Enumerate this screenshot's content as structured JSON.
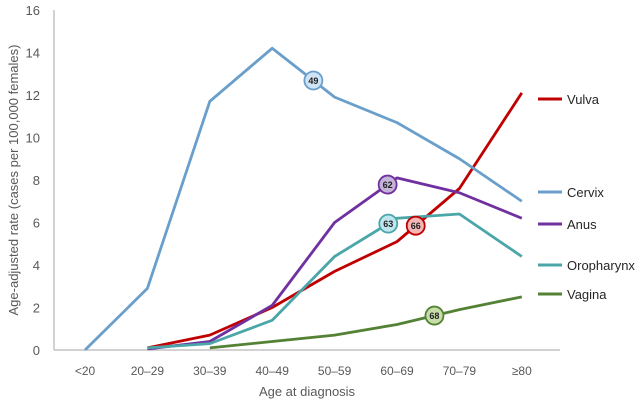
{
  "chart_data": {
    "type": "line",
    "title": "",
    "xlabel": "Age at diagnosis",
    "ylabel": "Age-adjusted rate (cases per 100,000 females)",
    "ylim": [
      0,
      16
    ],
    "yticks": [
      0,
      2,
      4,
      6,
      8,
      10,
      12,
      14,
      16
    ],
    "grid": false,
    "legend": "right",
    "categories": [
      "<20",
      "20–29",
      "30–39",
      "40–49",
      "50–59",
      "60–69",
      "70–79",
      "≥80"
    ],
    "series": [
      {
        "name": "Vulva",
        "color": "#c00000",
        "values": [
          null,
          0.1,
          0.7,
          2.0,
          3.7,
          5.1,
          7.6,
          12.1
        ],
        "median_age": "66",
        "marker_fill": "#f4b6b6"
      },
      {
        "name": "Cervix",
        "color": "#6a9fcb",
        "values": [
          0,
          2.9,
          11.7,
          14.2,
          11.9,
          10.7,
          9.0,
          7.0
        ],
        "median_age": "49",
        "marker_fill": "#cfe4f5"
      },
      {
        "name": "Anus",
        "color": "#7030a0",
        "values": [
          null,
          0.05,
          0.4,
          2.1,
          6.0,
          8.1,
          7.4,
          6.2
        ],
        "median_age": "62",
        "marker_fill": "#c3b4d8"
      },
      {
        "name": "Oropharynx",
        "color": "#4aa6a8",
        "values": [
          null,
          0.1,
          0.3,
          1.4,
          4.4,
          6.2,
          6.4,
          4.4
        ],
        "median_age": "63",
        "marker_fill": "#bfe6ef"
      },
      {
        "name": "Vagina",
        "color": "#548235",
        "values": [
          null,
          null,
          0.1,
          0.4,
          0.7,
          1.2,
          1.9,
          2.5
        ],
        "median_age": "68",
        "marker_fill": "#c8deaa"
      }
    ]
  }
}
